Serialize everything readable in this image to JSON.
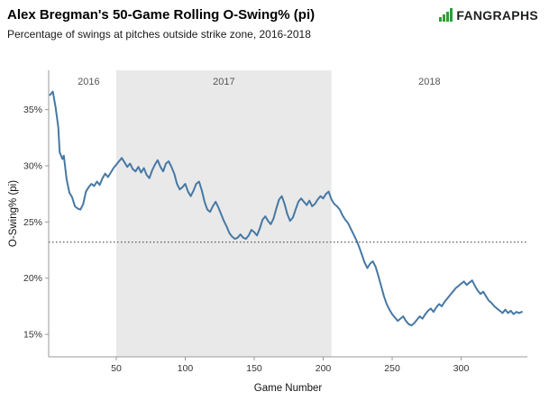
{
  "header": {
    "title": "Alex Bregman's 50-Game Rolling O-Swing% (pi)",
    "subtitle": "Percentage of swings at pitches outside strike zone, 2016-2018"
  },
  "logo": {
    "text": "FANGRAPHS",
    "icon": "bar-chart-icon",
    "icon_color": "#2f9e33",
    "text_color": "#1e221e"
  },
  "chart_data": {
    "type": "line",
    "title": "Alex Bregman's 50-Game Rolling O-Swing% (pi)",
    "xlabel": "Game Number",
    "ylabel": "O-Swing% (pi)",
    "xlim": [
      1,
      348
    ],
    "ylim": [
      13,
      38.5
    ],
    "x_ticks": [
      50,
      100,
      150,
      200,
      250,
      300
    ],
    "y_ticks": [
      15,
      20,
      25,
      30,
      35
    ],
    "y_tick_suffix": "%",
    "grid": false,
    "legend": false,
    "axis_color": "#999999",
    "tick_label_color": "#333333",
    "reference_line": {
      "y": 23.2,
      "color": "#333333",
      "style": "dotted"
    },
    "shaded_region": {
      "x0": 50,
      "x1": 206,
      "color": "#e9e9e9",
      "label": "2017"
    },
    "year_labels": [
      {
        "label": "2016",
        "x": 30
      },
      {
        "label": "2017",
        "x": 128
      },
      {
        "label": "2018",
        "x": 277
      }
    ],
    "year_label_color": "#555555",
    "series": [
      {
        "name": "50-Game Rolling O-Swing% (pi)",
        "color": "#4678a4",
        "x": [
          2,
          4,
          6,
          8,
          9,
          11,
          12,
          14,
          16,
          18,
          20,
          22,
          24,
          26,
          28,
          30,
          32,
          34,
          36,
          38,
          40,
          42,
          44,
          46,
          48,
          50,
          52,
          54,
          56,
          58,
          60,
          62,
          64,
          66,
          68,
          70,
          72,
          74,
          76,
          78,
          80,
          82,
          84,
          86,
          88,
          90,
          92,
          94,
          96,
          98,
          100,
          102,
          104,
          106,
          108,
          110,
          112,
          114,
          116,
          118,
          120,
          122,
          124,
          126,
          128,
          130,
          132,
          134,
          136,
          138,
          140,
          142,
          144,
          146,
          148,
          150,
          152,
          154,
          156,
          158,
          160,
          162,
          164,
          166,
          168,
          170,
          172,
          174,
          176,
          178,
          180,
          182,
          184,
          186,
          188,
          190,
          192,
          194,
          196,
          198,
          200,
          202,
          204,
          206,
          208,
          210,
          212,
          214,
          216,
          218,
          220,
          222,
          224,
          226,
          228,
          230,
          232,
          234,
          236,
          238,
          240,
          242,
          244,
          246,
          248,
          250,
          252,
          254,
          256,
          258,
          260,
          262,
          264,
          266,
          268,
          270,
          272,
          274,
          276,
          278,
          280,
          282,
          284,
          286,
          288,
          290,
          292,
          294,
          296,
          298,
          300,
          302,
          304,
          306,
          308,
          310,
          312,
          314,
          316,
          318,
          320,
          322,
          324,
          326,
          328,
          330,
          332,
          334,
          336,
          338,
          340,
          342,
          344
        ],
        "y": [
          36.3,
          36.6,
          35.2,
          33.4,
          31.2,
          30.6,
          30.9,
          28.8,
          27.6,
          27.2,
          26.4,
          26.2,
          26.1,
          26.6,
          27.7,
          28.1,
          28.4,
          28.2,
          28.6,
          28.3,
          28.9,
          29.3,
          29.0,
          29.4,
          29.8,
          30.1,
          30.4,
          30.7,
          30.3,
          29.9,
          30.2,
          29.7,
          29.5,
          29.9,
          29.4,
          29.8,
          29.2,
          28.9,
          29.6,
          30.1,
          30.5,
          29.9,
          29.5,
          30.2,
          30.4,
          29.9,
          29.3,
          28.4,
          27.9,
          28.1,
          28.4,
          27.7,
          27.3,
          27.8,
          28.4,
          28.6,
          27.8,
          26.8,
          26.1,
          25.9,
          26.4,
          26.8,
          26.3,
          25.7,
          25.1,
          24.6,
          24.0,
          23.7,
          23.5,
          23.6,
          23.9,
          23.6,
          23.5,
          23.8,
          24.3,
          24.1,
          23.8,
          24.4,
          25.2,
          25.5,
          25.1,
          24.8,
          25.3,
          26.2,
          27.0,
          27.3,
          26.6,
          25.7,
          25.1,
          25.4,
          26.1,
          26.8,
          27.1,
          26.8,
          26.5,
          26.9,
          26.4,
          26.6,
          27.0,
          27.3,
          27.1,
          27.5,
          27.7,
          27.0,
          26.6,
          26.4,
          26.1,
          25.6,
          25.2,
          24.9,
          24.4,
          23.9,
          23.4,
          22.8,
          22.1,
          21.4,
          20.9,
          21.3,
          21.5,
          21.0,
          20.2,
          19.3,
          18.4,
          17.7,
          17.2,
          16.8,
          16.5,
          16.2,
          16.4,
          16.6,
          16.2,
          15.9,
          15.8,
          16.0,
          16.3,
          16.6,
          16.4,
          16.8,
          17.1,
          17.3,
          17.0,
          17.4,
          17.7,
          17.5,
          17.9,
          18.2,
          18.5,
          18.8,
          19.1,
          19.3,
          19.5,
          19.7,
          19.4,
          19.6,
          19.8,
          19.3,
          18.9,
          18.6,
          18.8,
          18.4,
          18.0,
          17.8,
          17.5,
          17.3,
          17.1,
          16.9,
          17.2,
          16.9,
          17.1,
          16.8,
          17.0,
          16.9,
          17.0
        ]
      }
    ]
  }
}
